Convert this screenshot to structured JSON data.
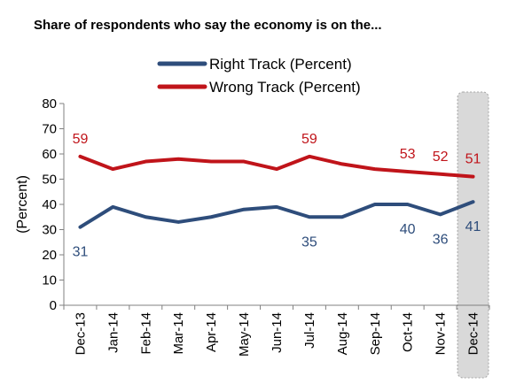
{
  "chart_data": {
    "type": "line",
    "title": "Share of respondents who say the economy is on the...",
    "ylabel": "(Percent)",
    "xlabel": "",
    "categories": [
      "Dec-13",
      "Jan-14",
      "Feb-14",
      "Mar-14",
      "Apr-14",
      "May-14",
      "Jun-14",
      "Jul-14",
      "Aug-14",
      "Sep-14",
      "Oct-14",
      "Nov-14",
      "Dec-14"
    ],
    "ylim": [
      0,
      80
    ],
    "yticks": [
      0,
      10,
      20,
      30,
      40,
      50,
      60,
      70,
      80
    ],
    "grid": false,
    "legend": "top",
    "highlight_category": "Dec-14",
    "highlight_color": "#d9d9d9",
    "series": [
      {
        "name": "Right Track (Percent)",
        "color": "#2e4d7b",
        "values": [
          31,
          39,
          35,
          33,
          35,
          38,
          39,
          35,
          35,
          40,
          40,
          36,
          41
        ],
        "labels": [
          "31",
          null,
          null,
          null,
          null,
          null,
          null,
          "35",
          null,
          null,
          "40",
          "36",
          "41"
        ],
        "label_position": "below"
      },
      {
        "name": "Wrong Track (Percent)",
        "color": "#c0141a",
        "values": [
          59,
          54,
          57,
          58,
          57,
          57,
          54,
          59,
          56,
          54,
          53,
          52,
          51
        ],
        "labels": [
          "59",
          null,
          null,
          null,
          null,
          null,
          null,
          "59",
          null,
          null,
          "53",
          "52",
          "51"
        ],
        "label_position": "above"
      }
    ]
  }
}
